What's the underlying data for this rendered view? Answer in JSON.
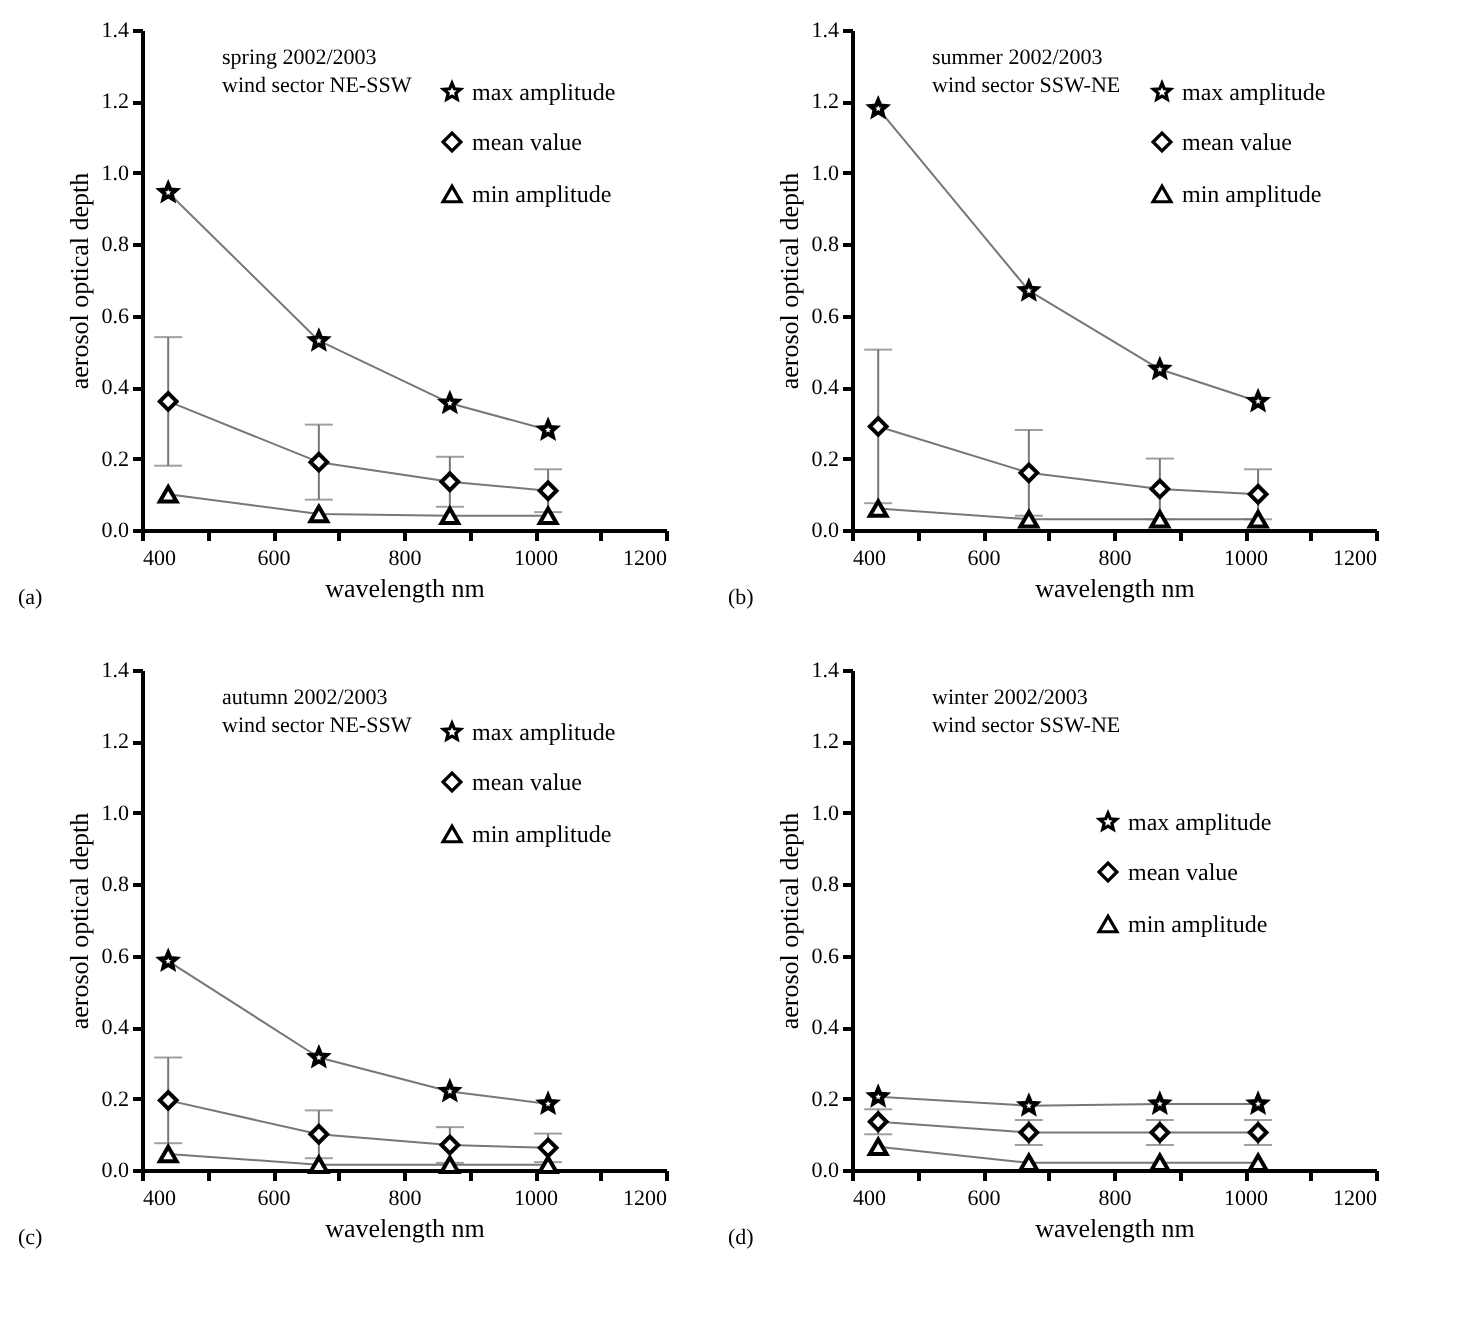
{
  "chart_data": [
    {
      "type": "line",
      "title": "spring 2002/2003",
      "subtitle": "wind sector NE-SSW",
      "xlabel": "wavelength nm",
      "ylabel": "aerosol optical depth",
      "annotations": [
        "(a)"
      ],
      "x": [
        440,
        670,
        870,
        1020
      ],
      "xlim": [
        400,
        1200
      ],
      "ylim": [
        0,
        1.4
      ],
      "xticks": [
        400,
        {
          "value": 500,
          "label": null
        },
        600,
        {
          "value": 700,
          "label": null
        },
        800,
        {
          "value": 900,
          "label": null
        },
        1000,
        {
          "value": 1100,
          "label": null
        },
        1200
      ],
      "yticks": [
        {
          "value": 0,
          "label": "0.0"
        },
        {
          "value": 0.2,
          "label": "0.2"
        },
        {
          "value": 0.4,
          "label": "0.4"
        },
        {
          "value": 0.6,
          "label": "0.6"
        },
        {
          "value": 0.8,
          "label": "0.8"
        },
        {
          "value": 1,
          "label": "1.0"
        },
        {
          "value": 1.2,
          "label": "1.2"
        },
        {
          "value": 1.4,
          "label": "1.4"
        }
      ],
      "legend": "top right",
      "grid": false,
      "series": [
        {
          "name": "max amplitude",
          "color": "#000000",
          "marker": "star",
          "values": [
            0.945,
            0.53,
            0.355,
            0.28
          ]
        },
        {
          "name": "mean value",
          "color": "#000000",
          "marker": "diamond",
          "values": [
            0.36,
            0.19,
            0.135,
            0.11
          ],
          "errors": [
            0.18,
            0.105,
            0.07,
            0.06
          ]
        },
        {
          "name": "min amplitude",
          "color": "#000000",
          "marker": "triangle",
          "values": [
            0.1,
            0.045,
            0.04,
            0.04
          ]
        }
      ]
    },
    {
      "type": "line",
      "title": "summer 2002/2003",
      "subtitle": "wind sector SSW-NE",
      "xlabel": "wavelength nm",
      "ylabel": "aerosol optical depth",
      "annotations": [
        "(b)"
      ],
      "x": [
        440,
        670,
        870,
        1020
      ],
      "xlim": [
        400,
        1200
      ],
      "ylim": [
        0,
        1.4
      ],
      "xticks": [
        400,
        {
          "value": 500,
          "label": null
        },
        600,
        {
          "value": 700,
          "label": null
        },
        800,
        {
          "value": 900,
          "label": null
        },
        1000,
        {
          "value": 1100,
          "label": null
        },
        1200
      ],
      "yticks": [
        {
          "value": 0,
          "label": "0.0"
        },
        {
          "value": 0.2,
          "label": "0.2"
        },
        {
          "value": 0.4,
          "label": "0.4"
        },
        {
          "value": 0.6,
          "label": "0.6"
        },
        {
          "value": 0.8,
          "label": "0.8"
        },
        {
          "value": 1,
          "label": "1.0"
        },
        {
          "value": 1.2,
          "label": "1.2"
        },
        {
          "value": 1.4,
          "label": "1.4"
        }
      ],
      "legend": "top right",
      "grid": false,
      "series": [
        {
          "name": "max amplitude",
          "color": "#000000",
          "marker": "star",
          "values": [
            1.18,
            0.67,
            0.45,
            0.36
          ]
        },
        {
          "name": "mean value",
          "color": "#000000",
          "marker": "diamond",
          "values": [
            0.29,
            0.16,
            0.115,
            0.1
          ],
          "errors": [
            0.215,
            0.12,
            0.085,
            0.07
          ]
        },
        {
          "name": "min amplitude",
          "color": "#000000",
          "marker": "triangle",
          "values": [
            0.06,
            0.03,
            0.03,
            0.03
          ]
        }
      ]
    },
    {
      "type": "line",
      "title": "autumn 2002/2003",
      "subtitle": "wind sector NE-SSW",
      "xlabel": "wavelength nm",
      "ylabel": "aerosol optical depth",
      "annotations": [
        "(c)"
      ],
      "x": [
        440,
        670,
        870,
        1020
      ],
      "xlim": [
        400,
        1200
      ],
      "ylim": [
        0,
        1.4
      ],
      "xticks": [
        400,
        {
          "value": 500,
          "label": null
        },
        600,
        {
          "value": 700,
          "label": null
        },
        800,
        {
          "value": 900,
          "label": null
        },
        1000,
        {
          "value": 1100,
          "label": null
        },
        1200
      ],
      "yticks": [
        {
          "value": 0,
          "label": "0.0"
        },
        {
          "value": 0.2,
          "label": "0.2"
        },
        {
          "value": 0.4,
          "label": "0.4"
        },
        {
          "value": 0.6,
          "label": "0.6"
        },
        {
          "value": 0.8,
          "label": "0.8"
        },
        {
          "value": 1,
          "label": "1.0"
        },
        {
          "value": 1.2,
          "label": "1.2"
        },
        {
          "value": 1.4,
          "label": "1.4"
        }
      ],
      "legend": "top right",
      "grid": false,
      "series": [
        {
          "name": "max amplitude",
          "color": "#000000",
          "marker": "star",
          "values": [
            0.585,
            0.315,
            0.22,
            0.185
          ]
        },
        {
          "name": "mean value",
          "color": "#000000",
          "marker": "diamond",
          "values": [
            0.195,
            0.1,
            0.07,
            0.062
          ],
          "errors": [
            0.12,
            0.067,
            0.05,
            0.04
          ]
        },
        {
          "name": "min amplitude",
          "color": "#000000",
          "marker": "triangle",
          "values": [
            0.045,
            0.015,
            0.015,
            0.015
          ]
        }
      ]
    },
    {
      "type": "line",
      "title": "winter 2002/2003",
      "subtitle": "wind sector SSW-NE",
      "xlabel": "wavelength nm",
      "ylabel": "aerosol optical depth",
      "annotations": [
        "(d)"
      ],
      "x": [
        440,
        670,
        870,
        1020
      ],
      "xlim": [
        400,
        1200
      ],
      "ylim": [
        0,
        1.4
      ],
      "xticks": [
        400,
        {
          "value": 500,
          "label": null
        },
        600,
        {
          "value": 700,
          "label": null
        },
        800,
        {
          "value": 900,
          "label": null
        },
        1000,
        {
          "value": 1100,
          "label": null
        },
        1200
      ],
      "yticks": [
        {
          "value": 0,
          "label": "0.0"
        },
        {
          "value": 0.2,
          "label": "0.2"
        },
        {
          "value": 0.4,
          "label": "0.4"
        },
        {
          "value": 0.6,
          "label": "0.6"
        },
        {
          "value": 0.8,
          "label": "0.8"
        },
        {
          "value": 1,
          "label": "1.0"
        },
        {
          "value": 1.2,
          "label": "1.2"
        },
        {
          "value": 1.4,
          "label": "1.4"
        }
      ],
      "legend": "right",
      "grid": false,
      "series": [
        {
          "name": "max amplitude",
          "color": "#000000",
          "marker": "star",
          "values": [
            0.205,
            0.18,
            0.185,
            0.185
          ]
        },
        {
          "name": "mean value",
          "color": "#000000",
          "marker": "diamond",
          "values": [
            0.135,
            0.105,
            0.105,
            0.105
          ],
          "errors": [
            0.035,
            0.035,
            0.035,
            0.035
          ]
        },
        {
          "name": "min amplitude",
          "color": "#000000",
          "marker": "triangle",
          "values": [
            0.065,
            0.02,
            0.02,
            0.02
          ]
        }
      ]
    }
  ]
}
